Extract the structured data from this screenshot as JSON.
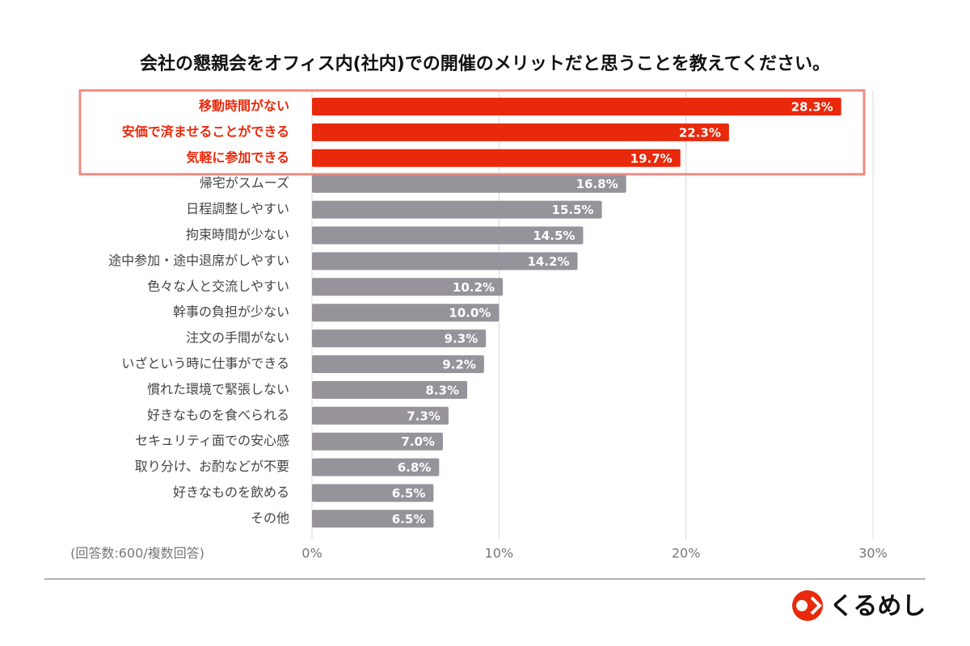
{
  "chart_data": {
    "type": "bar",
    "orientation": "horizontal",
    "title": "会社の懇親会をオフィス内(社内)での開催のメリットだと思うことを教えてください。",
    "categories": [
      "移動時間がない",
      "安価で済ませることができる",
      "気軽に参加できる",
      "帰宅がスムーズ",
      "日程調整しやすい",
      "拘束時間が少ない",
      "途中参加・途中退席がしやすい",
      "色々な人と交流しやすい",
      "幹事の負担が少ない",
      "注文の手間がない",
      "いざという時に仕事ができる",
      "慣れた環境で緊張しない",
      "好きなものを食べられる",
      "セキュリティ面での安心感",
      "取り分け、お酌などが不要",
      "好きなものを飲める",
      "その他"
    ],
    "values": [
      28.3,
      22.3,
      19.7,
      16.8,
      15.5,
      14.5,
      14.2,
      10.2,
      10.0,
      9.3,
      9.2,
      8.3,
      7.3,
      7.0,
      6.8,
      6.5,
      6.5
    ],
    "value_labels": [
      "28.3%",
      "22.3%",
      "19.7%",
      "16.8%",
      "15.5%",
      "14.5%",
      "14.2%",
      "10.2%",
      "10.0%",
      "9.3%",
      "9.2%",
      "8.3%",
      "7.3%",
      "7.0%",
      "6.8%",
      "6.5%",
      "6.5%"
    ],
    "colors": [
      "#e8290b",
      "#e8290b",
      "#e8290b",
      "#96939a",
      "#96939a",
      "#96939a",
      "#96939a",
      "#96939a",
      "#96939a",
      "#96939a",
      "#96939a",
      "#96939a",
      "#96939a",
      "#96939a",
      "#96939a",
      "#96939a",
      "#96939a"
    ],
    "label_colors": [
      "#e8290b",
      "#e8290b",
      "#e8290b",
      "#444444",
      "#444444",
      "#444444",
      "#444444",
      "#444444",
      "#444444",
      "#444444",
      "#444444",
      "#444444",
      "#444444",
      "#444444",
      "#444444",
      "#444444",
      "#444444"
    ],
    "xlim": [
      0,
      30
    ],
    "xticks": [
      {
        "value": 0,
        "label": "0%"
      },
      {
        "value": 10,
        "label": "10%"
      },
      {
        "value": 20,
        "label": "20%"
      },
      {
        "value": 30,
        "label": "30%"
      }
    ],
    "grid": true,
    "note": "(回答数:600/複数回答)"
  },
  "logo": "くるめし"
}
